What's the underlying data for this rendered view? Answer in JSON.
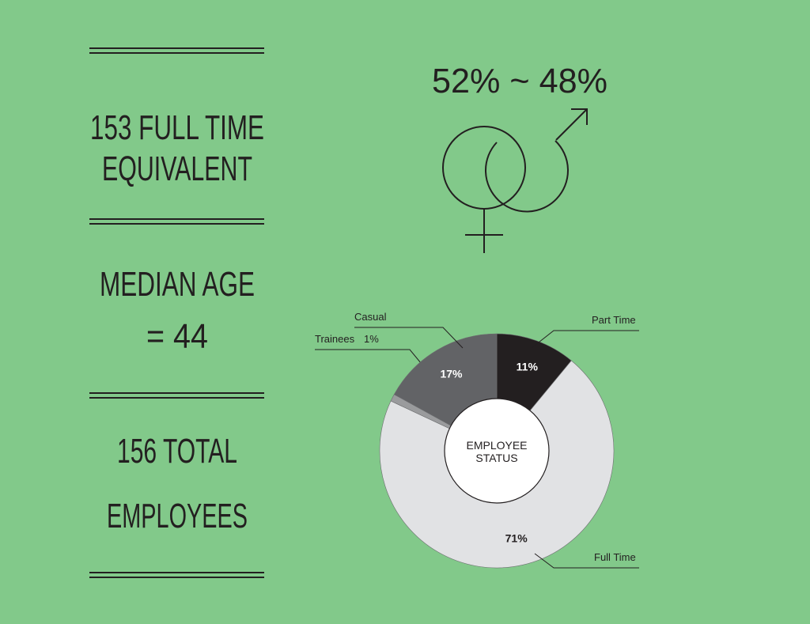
{
  "stats": [
    {
      "lines": [
        "153 FULL TIME",
        "EQUIVALENT"
      ]
    },
    {
      "lines": [
        "MEDIAN AGE",
        "= 44"
      ]
    },
    {
      "lines": [
        "156 TOTAL",
        "EMPLOYEES"
      ]
    }
  ],
  "gender": "52% ~ 48%",
  "chart_data": {
    "type": "donut",
    "center_label": [
      "EMPLOYEE",
      "STATUS"
    ],
    "categories": [
      "Part Time",
      "Full Time",
      "Trainees",
      "Casual"
    ],
    "values": [
      11,
      71,
      1,
      17
    ],
    "value_labels": [
      "11%",
      "71%",
      "1%",
      "17%"
    ],
    "colors": [
      "#231f20",
      "#e1e2e4",
      "#9a9b9d",
      "#626366"
    ]
  }
}
